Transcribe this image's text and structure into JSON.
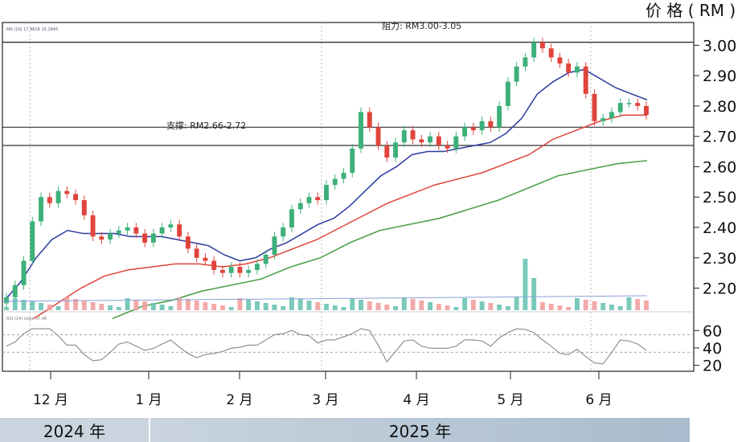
{
  "chart_data": {
    "type": "candlestick",
    "unit_label": "价 格 ( RM )",
    "y_ticks": [
      "3.00",
      "2.90",
      "2.80",
      "2.70",
      "2.60",
      "2.50",
      "2.40",
      "2.30",
      "2.20"
    ],
    "ylim": [
      2.13,
      3.03
    ],
    "rsi_ticks": [
      "60",
      "40",
      "20"
    ],
    "rsi_lim": [
      15,
      75
    ],
    "months": [
      "12 月",
      "1 月",
      "2 月",
      "3 月",
      "4 月",
      "5 月",
      "6 月"
    ],
    "years": [
      "2024 年",
      "2025 年"
    ],
    "resistance": {
      "label": "阻力: RM3.00-3.05",
      "level": 3.01
    },
    "support": {
      "label": "支撑: RM2.66-2.72",
      "upper": 2.73,
      "lower": 2.67
    },
    "legend_small": "MA (10)  17.4616  15.2845",
    "rsi_label": "RSI (14)  close  37.46",
    "price_series": [
      2.17,
      2.21,
      2.29,
      2.42,
      2.5,
      2.48,
      2.52,
      2.51,
      2.49,
      2.44,
      2.37,
      2.36,
      2.38,
      2.39,
      2.4,
      2.38,
      2.35,
      2.38,
      2.4,
      2.41,
      2.37,
      2.33,
      2.3,
      2.29,
      2.26,
      2.25,
      2.27,
      2.25,
      2.26,
      2.28,
      2.31,
      2.37,
      2.4,
      2.46,
      2.48,
      2.5,
      2.49,
      2.54,
      2.56,
      2.58,
      2.66,
      2.78,
      2.73,
      2.67,
      2.63,
      2.68,
      2.72,
      2.69,
      2.68,
      2.7,
      2.67,
      2.66,
      2.7,
      2.73,
      2.72,
      2.75,
      2.73,
      2.8,
      2.88,
      2.93,
      2.96,
      3.01,
      2.99,
      2.96,
      2.94,
      2.91,
      2.93,
      2.84,
      2.75,
      2.76,
      2.78,
      2.81,
      2.81,
      2.8,
      2.77
    ],
    "ma20": [
      2.16,
      2.22,
      2.3,
      2.36,
      2.39,
      2.38,
      2.38,
      2.38,
      2.37,
      2.37,
      2.37,
      2.36,
      2.35,
      2.34,
      2.31,
      2.29,
      2.3,
      2.33,
      2.35,
      2.38,
      2.41,
      2.43,
      2.47,
      2.52,
      2.57,
      2.6,
      2.64,
      2.65,
      2.65,
      2.66,
      2.67,
      2.68,
      2.71,
      2.76,
      2.84,
      2.88,
      2.91,
      2.92,
      2.89,
      2.86,
      2.84,
      2.82
    ],
    "ma50": [
      2.1,
      2.15,
      2.2,
      2.24,
      2.26,
      2.27,
      2.28,
      2.28,
      2.27,
      2.28,
      2.3,
      2.33,
      2.36,
      2.4,
      2.44,
      2.48,
      2.51,
      2.54,
      2.56,
      2.58,
      2.61,
      2.64,
      2.69,
      2.72,
      2.75,
      2.77,
      2.77
    ],
    "ma100": [
      2.1,
      2.14,
      2.16,
      2.19,
      2.21,
      2.23,
      2.27,
      2.3,
      2.35,
      2.39,
      2.41,
      2.43,
      2.46,
      2.49,
      2.53,
      2.57,
      2.59,
      2.61,
      2.62
    ]
  },
  "colors": {
    "up": "#3db07a",
    "down": "#e0443c",
    "ma20": "#2c3a9e",
    "ma50": "#e0443c",
    "ma100": "#4ea14e",
    "rsi": "#888888",
    "grid": "#999999",
    "year_a": "#c9d4de",
    "year_b": "#a9bccd"
  }
}
